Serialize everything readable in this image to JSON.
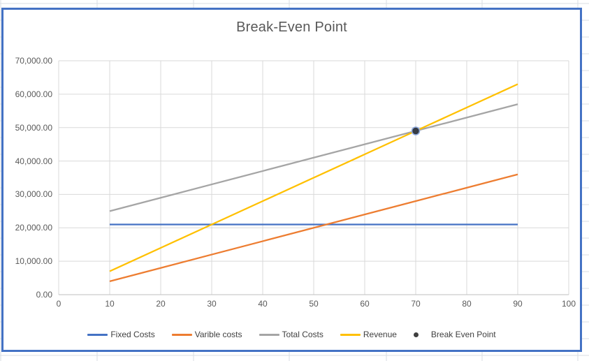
{
  "spreadsheet": {
    "gridline_color": "#d9dde3"
  },
  "chart": {
    "title": "Break-Even Point",
    "title_color": "#595959",
    "border_color": "#4472C4",
    "plot_gridline_color": "#d9d9d9",
    "axis_line_color": "#bfbfbf",
    "tick_label_color": "#595959",
    "legend_text_color": "#404040",
    "y_ticks": [
      "0.00",
      "10,000.00",
      "20,000.00",
      "30,000.00",
      "40,000.00",
      "50,000.00",
      "60,000.00",
      "70,000.00"
    ],
    "x_ticks": [
      "0",
      "10",
      "20",
      "30",
      "40",
      "50",
      "60",
      "70",
      "80",
      "90",
      "100"
    ]
  },
  "chart_data": {
    "type": "line",
    "title": "Break-Even Point",
    "x": [
      10,
      20,
      30,
      40,
      50,
      60,
      70,
      80,
      90
    ],
    "series": [
      {
        "name": "Fixed Costs",
        "color": "#4472C4",
        "values": [
          21000,
          21000,
          21000,
          21000,
          21000,
          21000,
          21000,
          21000,
          21000
        ]
      },
      {
        "name": "Varible costs",
        "color": "#ED7D31",
        "values": [
          4000,
          8000,
          12000,
          16000,
          20000,
          24000,
          28000,
          32000,
          36000
        ]
      },
      {
        "name": "Total Costs",
        "color": "#A5A5A5",
        "values": [
          25000,
          29000,
          33000,
          37000,
          41000,
          45000,
          49000,
          53000,
          57000
        ]
      },
      {
        "name": "Revenue",
        "color": "#FFC000",
        "values": [
          7000,
          14000,
          21000,
          28000,
          35000,
          42000,
          49000,
          56000,
          63000
        ]
      }
    ],
    "point_series": [
      {
        "name": "Break Even Point",
        "x": 70,
        "y": 49000,
        "fill": "#363B44",
        "outline": "#8FAADC"
      }
    ],
    "xlim": [
      0,
      100
    ],
    "ylim": [
      0,
      70000
    ],
    "x_tick_step": 10,
    "y_tick_step": 10000,
    "grid": true,
    "legend_position": "bottom"
  },
  "legend": {
    "items": [
      {
        "label": "Fixed Costs",
        "swatch": "line",
        "color": "#4472C4"
      },
      {
        "label": "Varible costs",
        "swatch": "line",
        "color": "#ED7D31"
      },
      {
        "label": "Total Costs",
        "swatch": "line",
        "color": "#A5A5A5"
      },
      {
        "label": "Revenue",
        "swatch": "line",
        "color": "#FFC000"
      },
      {
        "label": "Break Even Point",
        "swatch": "dot",
        "color": "#3f3f3f"
      }
    ]
  }
}
